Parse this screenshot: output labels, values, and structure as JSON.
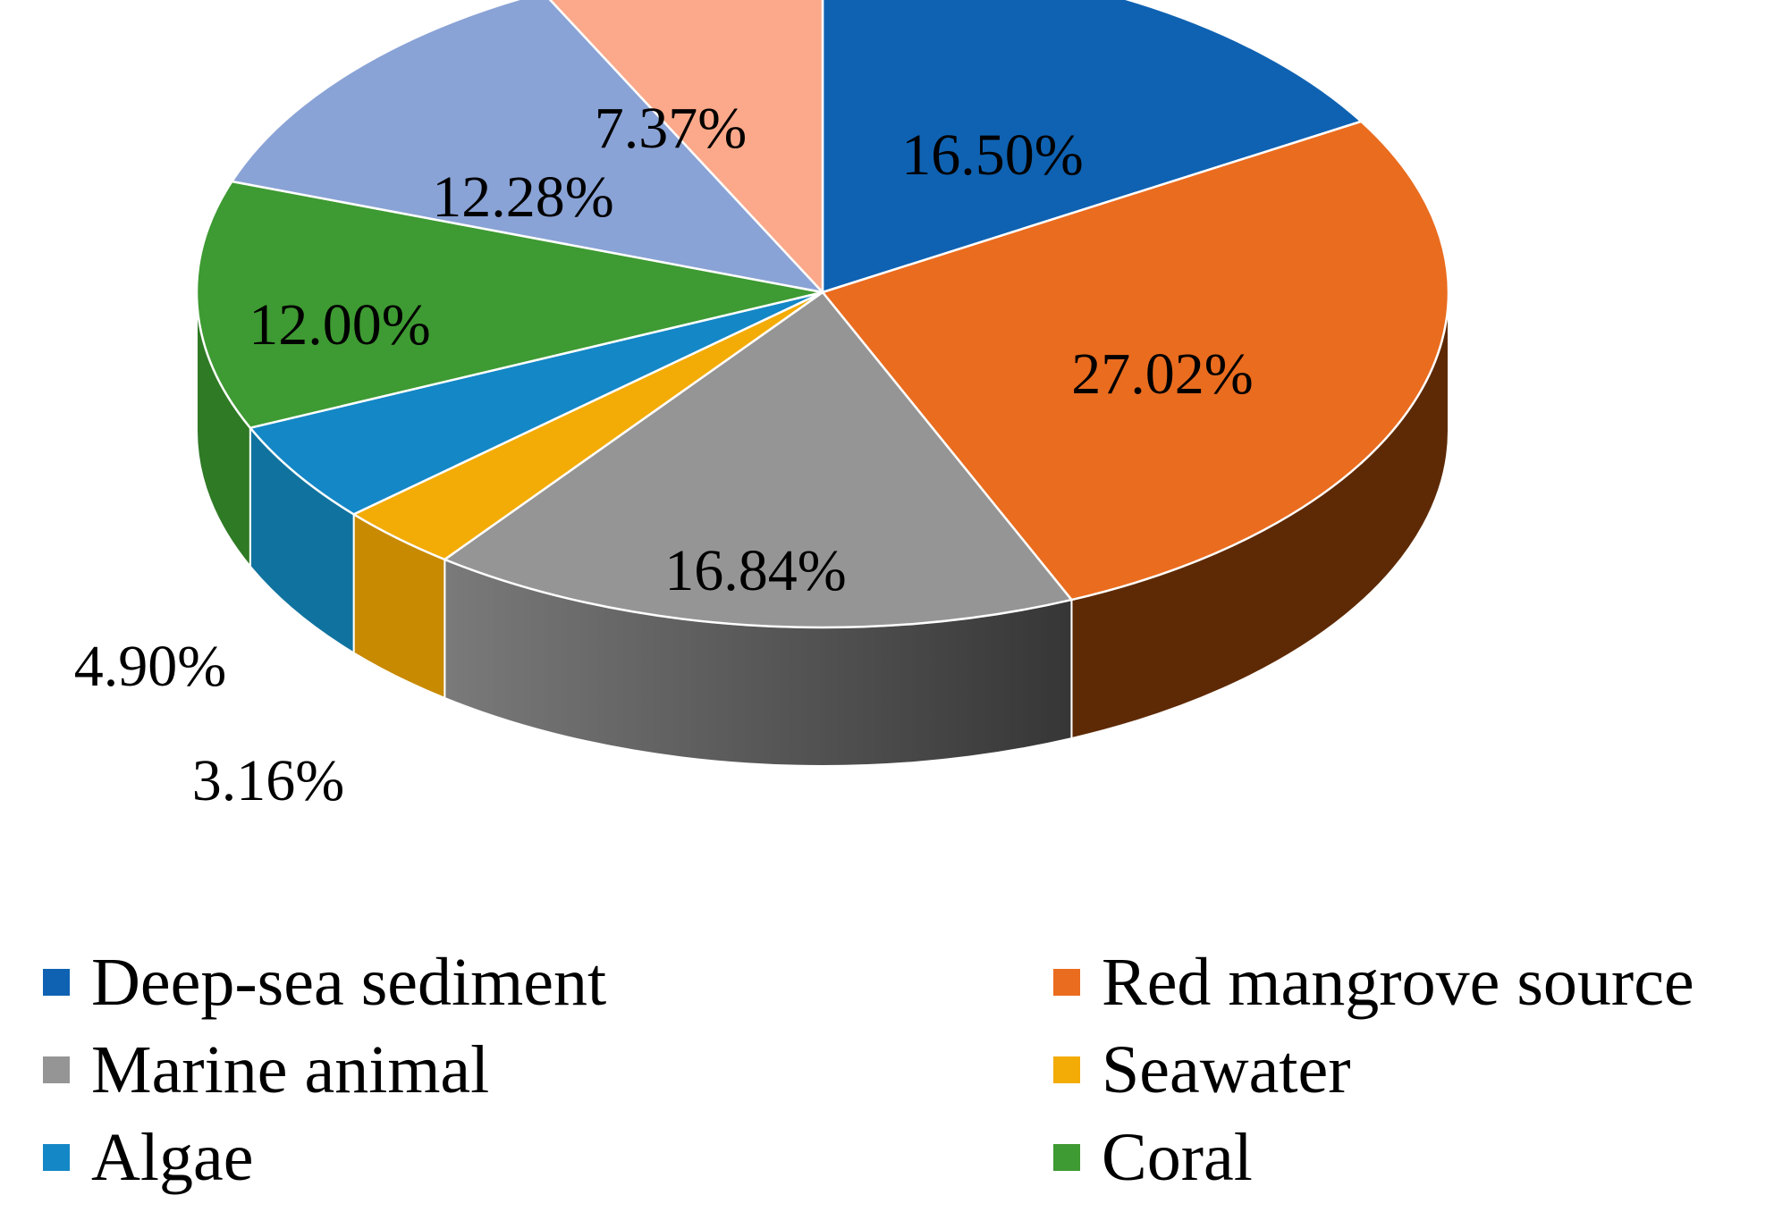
{
  "chart_data": {
    "type": "pie",
    "style": "3d-pie",
    "title": "",
    "slices": [
      {
        "name": "Deep-sea sediment",
        "value": 16.5,
        "label": "16.50%",
        "color": "#0f62b2"
      },
      {
        "name": "Red mangrove source",
        "value": 27.02,
        "label": "27.02%",
        "color": "#ea6c1f"
      },
      {
        "name": "Marine animal",
        "value": 16.84,
        "label": "16.84%",
        "color": "#959595"
      },
      {
        "name": "Seawater",
        "value": 3.16,
        "label": "3.16%",
        "color": "#f3ab06"
      },
      {
        "name": "Algae",
        "value": 4.9,
        "label": "4.90%",
        "color": "#1487c6"
      },
      {
        "name": "Coral",
        "value": 12.0,
        "label": "12.00%",
        "color": "#3e9a32"
      },
      {
        "name": "",
        "value": 12.28,
        "label": "12.28%",
        "color": "#8aa3d6"
      },
      {
        "name": "",
        "value": 7.37,
        "label": "7.37%",
        "color": "#fba98a"
      }
    ],
    "legend": [
      {
        "label": "Deep-sea sediment",
        "color": "#0f62b2"
      },
      {
        "label": "Red mangrove source",
        "color": "#ea6c1f"
      },
      {
        "label": "Marine animal",
        "color": "#959595"
      },
      {
        "label": "Seawater",
        "color": "#f3ab06"
      },
      {
        "label": "Algae",
        "color": "#1487c6"
      },
      {
        "label": "Coral",
        "color": "#3e9a32"
      }
    ],
    "legend_position": "bottom"
  }
}
